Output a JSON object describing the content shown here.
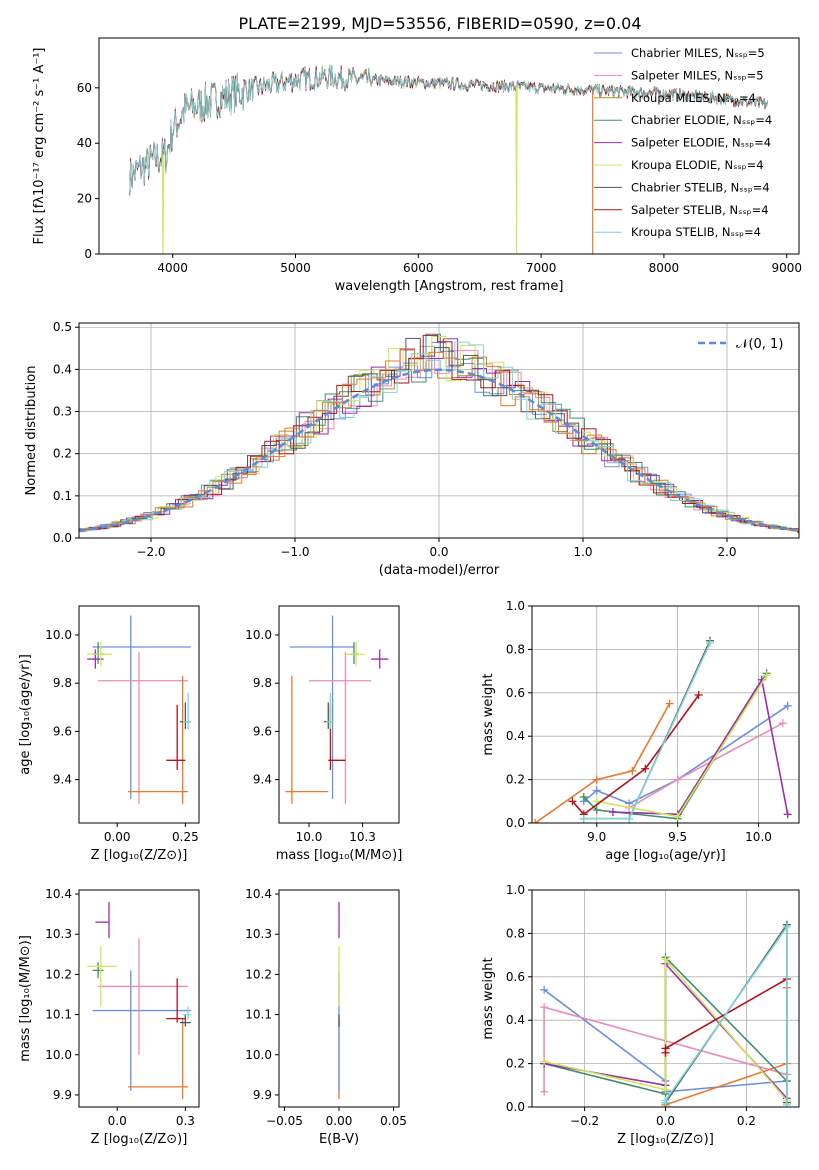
{
  "figure_title": "PLATE=2199, MJD=53556, FIBERID=0590, z=0.04",
  "colors": {
    "Chabrier MILES": "#6a8fdd",
    "Salpeter MILES": "#e98ab9",
    "Kroupa MILES": "#b58a2a",
    "Chabrier ELODIE": "#3f8f6f",
    "Salpeter ELODIE": "#9b2fae",
    "Kroupa ELODIE": "#d3e35a",
    "Chabrier STELIB": "#555555",
    "Salpeter STELIB": "#b0131e",
    "Kroupa STELIB": "#7fd6d6",
    "orange": "#e8782a",
    "gaussian": "#5b8bd9"
  },
  "chart_data": [
    {
      "type": "line",
      "title": "PLATE=2199, MJD=53556, FIBERID=0590, z=0.04",
      "xlabel": "wavelength [Angstrom, rest frame]",
      "ylabel": "Flux [fλ10⁻¹⁷ erg cm⁻² s⁻¹ A⁻¹]",
      "xlim": [
        3400,
        9100
      ],
      "ylim": [
        0,
        78
      ],
      "xticks": [
        4000,
        5000,
        6000,
        7000,
        8000,
        9000
      ],
      "yticks": [
        0,
        20,
        40,
        60
      ],
      "legend_position": "top-right",
      "legend": [
        "Chabrier MILES, Nₛₛₚ=5",
        "Salpeter MILES, Nₛₛₚ=5",
        "Kroupa MILES, Nₛₛₚ=4",
        "Chabrier ELODIE, Nₛₛₚ=4",
        "Salpeter ELODIE, Nₛₛₚ=4",
        "Kroupa ELODIE, Nₛₛₚ=4",
        "Chabrier STELIB, Nₛₛₚ=4",
        "Salpeter STELIB, Nₛₛₚ=4",
        "Kroupa STELIB, Nₛₛₚ=4"
      ],
      "continuum": {
        "x": [
          3650,
          3750,
          3850,
          3950,
          4000,
          4100,
          4300,
          4500,
          5000,
          5300,
          5500,
          6000,
          6500,
          7000,
          7500,
          8000,
          8500,
          8850
        ],
        "y": [
          28,
          31,
          34,
          36,
          45,
          52,
          55,
          58,
          63,
          64,
          63,
          62,
          61,
          60,
          59,
          58,
          56,
          54
        ]
      },
      "dropouts": [
        {
          "x": 3920,
          "color": "Kroupa ELODIE"
        },
        {
          "x": 6800,
          "color": "Kroupa ELODIE"
        },
        {
          "x": 7420,
          "color": "orange"
        }
      ]
    },
    {
      "type": "histogram",
      "xlabel": "(data-model)/error",
      "ylabel": "Normed distribution",
      "xlim": [
        -2.5,
        2.5
      ],
      "ylim": [
        0,
        0.51
      ],
      "xticks": [
        -2,
        -1,
        0,
        1,
        2
      ],
      "yticks": [
        0.0,
        0.1,
        0.2,
        0.3,
        0.4,
        0.5
      ],
      "grid": true,
      "legend_position": "top-right",
      "gaussian_label": "𝒩(0, 1)",
      "bin_centers": [
        -2.4,
        -2.2,
        -2.0,
        -1.8,
        -1.6,
        -1.4,
        -1.2,
        -1.0,
        -0.8,
        -0.6,
        -0.4,
        -0.2,
        0.0,
        0.2,
        0.4,
        0.6,
        0.8,
        1.0,
        1.2,
        1.4,
        1.6,
        1.8,
        2.0,
        2.2,
        2.4
      ],
      "reference_density": [
        0.022,
        0.035,
        0.054,
        0.079,
        0.111,
        0.15,
        0.194,
        0.242,
        0.29,
        0.333,
        0.368,
        0.391,
        0.399,
        0.391,
        0.368,
        0.333,
        0.29,
        0.242,
        0.194,
        0.15,
        0.111,
        0.079,
        0.054,
        0.035,
        0.022
      ]
    },
    {
      "type": "errorbar",
      "xlabel": "Z [log₁₀(Z/Z⊙)]",
      "ylabel": "age  [log₁₀(age/yr)]",
      "xlim": [
        -0.14,
        0.3
      ],
      "ylim": [
        9.22,
        10.12
      ],
      "xticks": [
        0.0,
        0.25
      ],
      "yticks": [
        9.4,
        9.6,
        9.8,
        10.0
      ],
      "points": [
        {
          "color": "Chabrier MILES",
          "x": 0.05,
          "y": 9.95,
          "xerr": [
            0.14,
            0.22
          ],
          "yerr": [
            0.63,
            0.13
          ]
        },
        {
          "color": "Salpeter MILES",
          "x": 0.08,
          "y": 9.81,
          "xerr": [
            0.15,
            0.18
          ],
          "yerr": [
            0.51,
            0.12
          ]
        },
        {
          "color": "orange",
          "x": 0.24,
          "y": 9.35,
          "xerr": [
            0.2,
            0.02
          ],
          "yerr": [
            0.05,
            0.48
          ]
        },
        {
          "color": "Chabrier ELODIE",
          "x": -0.07,
          "y": 9.92,
          "xerr": [
            0.02,
            0.02
          ],
          "yerr": [
            0.04,
            0.05
          ]
        },
        {
          "color": "Salpeter ELODIE",
          "x": -0.08,
          "y": 9.9,
          "xerr": [
            0.03,
            0.03
          ],
          "yerr": [
            0.04,
            0.04
          ]
        },
        {
          "color": "Kroupa ELODIE",
          "x": -0.06,
          "y": 9.92,
          "xerr": [
            0.05,
            0.04
          ],
          "yerr": [
            0.05,
            0.05
          ]
        },
        {
          "color": "Chabrier STELIB",
          "x": 0.25,
          "y": 9.64,
          "xerr": [
            0.02,
            0.02
          ],
          "yerr": [
            0.03,
            0.08
          ]
        },
        {
          "color": "Salpeter STELIB",
          "x": 0.22,
          "y": 9.48,
          "xerr": [
            0.04,
            0.03
          ],
          "yerr": [
            0.04,
            0.23
          ]
        },
        {
          "color": "Kroupa STELIB",
          "x": 0.26,
          "y": 9.64,
          "xerr": [
            0.02,
            0.01
          ],
          "yerr": [
            0.03,
            0.12
          ]
        }
      ]
    },
    {
      "type": "errorbar",
      "xlabel": "mass [log₁₀(M/M⊙)]",
      "xlim": [
        9.86,
        10.42
      ],
      "ylim": [
        9.22,
        10.12
      ],
      "xticks": [
        10.0,
        10.25
      ],
      "yticks": [
        9.4,
        9.6,
        9.8,
        10.0
      ],
      "points": [
        {
          "color": "Chabrier MILES",
          "x": 10.11,
          "y": 9.95,
          "xerr": [
            0.2,
            0.1
          ],
          "yerr": [
            0.63,
            0.13
          ]
        },
        {
          "color": "Salpeter MILES",
          "x": 10.17,
          "y": 9.81,
          "xerr": [
            0.17,
            0.12
          ],
          "yerr": [
            0.51,
            0.12
          ]
        },
        {
          "color": "orange",
          "x": 9.92,
          "y": 9.35,
          "xerr": [
            0.03,
            0.17
          ],
          "yerr": [
            0.05,
            0.48
          ]
        },
        {
          "color": "Chabrier ELODIE",
          "x": 10.21,
          "y": 9.92,
          "xerr": [
            0.02,
            0.02
          ],
          "yerr": [
            0.04,
            0.05
          ]
        },
        {
          "color": "Salpeter ELODIE",
          "x": 10.33,
          "y": 9.9,
          "xerr": [
            0.04,
            0.04
          ],
          "yerr": [
            0.04,
            0.04
          ]
        },
        {
          "color": "Kroupa ELODIE",
          "x": 10.22,
          "y": 9.92,
          "xerr": [
            0.05,
            0.04
          ],
          "yerr": [
            0.05,
            0.05
          ]
        },
        {
          "color": "Chabrier STELIB",
          "x": 10.09,
          "y": 9.64,
          "xerr": [
            0.02,
            0.02
          ],
          "yerr": [
            0.03,
            0.08
          ]
        },
        {
          "color": "Salpeter STELIB",
          "x": 10.1,
          "y": 9.48,
          "xerr": [
            0.01,
            0.07
          ],
          "yerr": [
            0.04,
            0.23
          ]
        },
        {
          "color": "Kroupa STELIB",
          "x": 10.1,
          "y": 9.64,
          "xerr": [
            0.02,
            0.01
          ],
          "yerr": [
            0.03,
            0.12
          ]
        }
      ]
    },
    {
      "type": "line",
      "xlabel": "age  [log₁₀(age/yr)]",
      "ylabel": "mass weight",
      "xlim": [
        8.6,
        10.25
      ],
      "ylim": [
        0,
        1.0
      ],
      "xticks": [
        9.0,
        9.5,
        10.0
      ],
      "yticks": [
        0.0,
        0.2,
        0.4,
        0.6,
        0.8,
        1.0
      ],
      "grid": true,
      "series": [
        {
          "color": "Chabrier MILES",
          "x": [
            8.92,
            9.0,
            9.2,
            9.5,
            10.18
          ],
          "y": [
            0.1,
            0.15,
            0.09,
            0.2,
            0.54
          ]
        },
        {
          "color": "Salpeter MILES",
          "x": [
            9.2,
            9.5,
            10.15
          ],
          "y": [
            0.07,
            0.2,
            0.46
          ]
        },
        {
          "color": "orange",
          "x": [
            8.62,
            9.0,
            9.22,
            9.45
          ],
          "y": [
            0.0,
            0.2,
            0.24,
            0.55
          ]
        },
        {
          "color": "Chabrier ELODIE",
          "x": [
            8.92,
            9.0,
            9.5,
            10.05
          ],
          "y": [
            0.12,
            0.06,
            0.02,
            0.69
          ]
        },
        {
          "color": "Salpeter ELODIE",
          "x": [
            9.1,
            9.5,
            10.02,
            10.18
          ],
          "y": [
            0.05,
            0.04,
            0.66,
            0.04
          ]
        },
        {
          "color": "Kroupa ELODIE",
          "x": [
            9.0,
            9.5,
            10.05
          ],
          "y": [
            0.1,
            0.03,
            0.68
          ]
        },
        {
          "color": "Chabrier STELIB",
          "x": [
            8.92,
            9.2,
            9.7
          ],
          "y": [
            0.02,
            0.02,
            0.84
          ]
        },
        {
          "color": "Salpeter STELIB",
          "x": [
            8.85,
            8.92,
            9.3,
            9.63
          ],
          "y": [
            0.1,
            0.04,
            0.25,
            0.59
          ]
        },
        {
          "color": "Kroupa STELIB",
          "x": [
            8.92,
            9.2,
            9.7
          ],
          "y": [
            0.02,
            0.02,
            0.83
          ]
        }
      ]
    },
    {
      "type": "errorbar",
      "xlabel": "Z [log₁₀(Z/Z⊙)]",
      "ylabel": "mass [log₁₀(M/M⊙)]",
      "xlim": [
        -0.14,
        0.3
      ],
      "ylim": [
        9.87,
        10.41
      ],
      "xticks": [
        0.0,
        0.25
      ],
      "yticks": [
        9.9,
        10.0,
        10.1,
        10.2,
        10.3,
        10.4
      ],
      "points": [
        {
          "color": "Chabrier MILES",
          "x": 0.05,
          "y": 10.11,
          "xerr": [
            0.14,
            0.22
          ],
          "yerr": [
            0.2,
            0.1
          ]
        },
        {
          "color": "Salpeter MILES",
          "x": 0.08,
          "y": 10.17,
          "xerr": [
            0.15,
            0.18
          ],
          "yerr": [
            0.17,
            0.12
          ]
        },
        {
          "color": "orange",
          "x": 0.24,
          "y": 9.92,
          "xerr": [
            0.2,
            0.02
          ],
          "yerr": [
            0.03,
            0.17
          ]
        },
        {
          "color": "Chabrier ELODIE",
          "x": -0.07,
          "y": 10.21,
          "xerr": [
            0.02,
            0.02
          ],
          "yerr": [
            0.02,
            0.02
          ]
        },
        {
          "color": "Salpeter ELODIE",
          "x": -0.03,
          "y": 10.33,
          "xerr": [
            0.05,
            0.0
          ],
          "yerr": [
            0.04,
            0.05
          ]
        },
        {
          "color": "Kroupa ELODIE",
          "x": -0.06,
          "y": 10.22,
          "xerr": [
            0.05,
            0.06
          ],
          "yerr": [
            0.1,
            0.05
          ]
        },
        {
          "color": "Chabrier STELIB",
          "x": 0.25,
          "y": 10.08,
          "xerr": [
            0.02,
            0.02
          ],
          "yerr": [
            0.01,
            0.02
          ]
        },
        {
          "color": "Salpeter STELIB",
          "x": 0.22,
          "y": 10.09,
          "xerr": [
            0.04,
            0.03
          ],
          "yerr": [
            0.01,
            0.1
          ]
        },
        {
          "color": "Kroupa STELIB",
          "x": 0.26,
          "y": 10.1,
          "xerr": [
            0.02,
            0.01
          ],
          "yerr": [
            0.01,
            0.02
          ]
        }
      ]
    },
    {
      "type": "errorbar",
      "xlabel": "E(B-V)",
      "xlim": [
        -0.055,
        0.055
      ],
      "ylim": [
        9.87,
        10.41
      ],
      "xticks": [
        -0.05,
        0.0,
        0.05
      ],
      "yticks": [
        9.9,
        10.0,
        10.1,
        10.2,
        10.3,
        10.4
      ],
      "points": [
        {
          "color": "orange",
          "x": 0.0,
          "y": 9.92,
          "xerr": [
            0,
            0
          ],
          "yerr": [
            0.03,
            0.17
          ]
        },
        {
          "color": "Chabrier MILES",
          "x": 0.0,
          "y": 10.11,
          "xerr": [
            0,
            0
          ],
          "yerr": [
            0.2,
            0.1
          ]
        },
        {
          "color": "Salpeter ELODIE",
          "x": 0.0,
          "y": 10.33,
          "xerr": [
            0,
            0
          ],
          "yerr": [
            0.04,
            0.05
          ]
        },
        {
          "color": "Kroupa ELODIE",
          "x": 0.0,
          "y": 10.22,
          "xerr": [
            0,
            0
          ],
          "yerr": [
            0.1,
            0.05
          ]
        },
        {
          "color": "Chabrier STELIB",
          "x": 0.0,
          "y": 10.08,
          "xerr": [
            0,
            0
          ],
          "yerr": [
            0.01,
            0.02
          ]
        }
      ]
    },
    {
      "type": "line",
      "xlabel": "Z [log₁₀(Z/Z⊙)]",
      "ylabel": "mass weight",
      "xlim": [
        -0.33,
        0.33
      ],
      "ylim": [
        0,
        1.0
      ],
      "xticks": [
        -0.2,
        0.0,
        0.2
      ],
      "yticks": [
        0.0,
        0.2,
        0.4,
        0.6,
        0.8,
        1.0
      ],
      "grid": true,
      "series": [
        {
          "color": "Chabrier MILES",
          "x": [
            -0.3,
            0.0,
            0.0,
            0.3
          ],
          "y": [
            0.54,
            0.12,
            0.07,
            0.12
          ]
        },
        {
          "color": "Salpeter MILES",
          "x": [
            -0.3,
            -0.3,
            0.3
          ],
          "y": [
            0.07,
            0.46,
            0.15
          ]
        },
        {
          "color": "orange",
          "x": [
            0.0,
            0.0,
            0.3,
            0.3
          ],
          "y": [
            0.0,
            0.01,
            0.2,
            0.55
          ]
        },
        {
          "color": "Chabrier ELODIE",
          "x": [
            -0.3,
            0.0,
            0.0,
            0.3
          ],
          "y": [
            0.2,
            0.06,
            0.69,
            0.12
          ]
        },
        {
          "color": "Salpeter ELODIE",
          "x": [
            -0.3,
            0.0,
            0.0,
            0.3
          ],
          "y": [
            0.2,
            0.1,
            0.66,
            0.04
          ]
        },
        {
          "color": "Kroupa ELODIE",
          "x": [
            -0.3,
            0.0,
            0.0,
            0.3
          ],
          "y": [
            0.21,
            0.08,
            0.68,
            0.03
          ]
        },
        {
          "color": "Chabrier STELIB",
          "x": [
            0.0,
            0.0,
            0.3,
            0.3
          ],
          "y": [
            0.02,
            0.02,
            0.84,
            0.02
          ]
        },
        {
          "color": "Salpeter STELIB",
          "x": [
            0.0,
            0.0,
            0.3
          ],
          "y": [
            0.25,
            0.27,
            0.59
          ]
        },
        {
          "color": "Kroupa STELIB",
          "x": [
            0.0,
            0.0,
            0.3,
            0.3
          ],
          "y": [
            0.02,
            0.03,
            0.83,
            0.01
          ]
        }
      ]
    }
  ]
}
